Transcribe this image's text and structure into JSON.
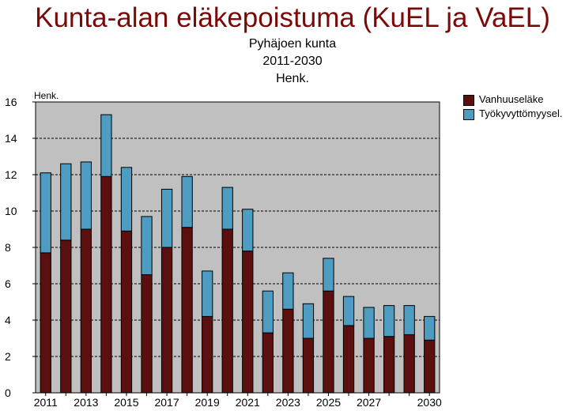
{
  "chart_data": {
    "type": "bar",
    "stacked": true,
    "title": "Kunta-alan eläkepoistuma (KuEL ja VaEL)",
    "subtitle_lines": [
      "Pyhäjoen kunta",
      "2011-2030",
      "Henk."
    ],
    "ylabel": "Henk.",
    "ylim": [
      0,
      16
    ],
    "yticks": [
      "0",
      "2",
      "4",
      "6",
      "8",
      "10",
      "12",
      "14",
      "16"
    ],
    "categories": [
      "2011",
      "2012",
      "2013",
      "2014",
      "2015",
      "2016",
      "2017",
      "2018",
      "2019",
      "2020",
      "2021",
      "2022",
      "2023",
      "2024",
      "2025",
      "2026",
      "2027",
      "2028",
      "2029",
      "2030"
    ],
    "xtick_labels": [
      "2011",
      "",
      "2013",
      "",
      "2015",
      "",
      "2017",
      "",
      "2019",
      "",
      "2021",
      "",
      "2023",
      "",
      "2025",
      "",
      "2027",
      "",
      "",
      "2030"
    ],
    "series": [
      {
        "name": "Vanhuuseläke",
        "color": "#5c0f0f",
        "values": [
          7.7,
          8.4,
          9.0,
          11.9,
          8.9,
          6.5,
          8.0,
          9.1,
          4.2,
          9.0,
          7.8,
          3.3,
          4.6,
          3.0,
          5.6,
          3.7,
          3.0,
          3.1,
          3.2,
          2.9
        ]
      },
      {
        "name": "Työkyvyttömyysel.",
        "color": "#4f9cc2",
        "values": [
          4.4,
          4.2,
          3.7,
          3.4,
          3.5,
          3.2,
          3.2,
          2.8,
          2.5,
          2.3,
          2.3,
          2.3,
          2.0,
          1.9,
          1.8,
          1.6,
          1.7,
          1.7,
          1.6,
          1.3
        ]
      }
    ],
    "plot_background": "#c0c0c0",
    "grid": true,
    "legend_position": "top-right"
  }
}
